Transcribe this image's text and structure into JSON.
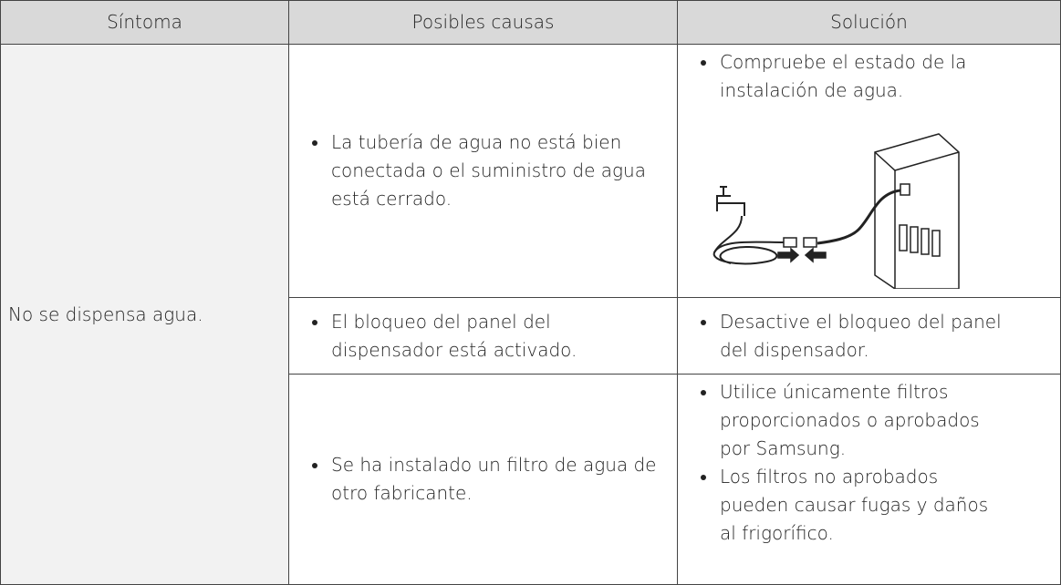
{
  "table": {
    "headers": [
      "Síntoma",
      "Posibles causas",
      "Solución"
    ],
    "symptom": "No se dispensa agua.",
    "rows": [
      {
        "cause": "La tubería de agua no está bien conectada o el suministro de agua está cerrado.",
        "solutions": [
          "Compruebe el estado de la instalación de agua."
        ]
      },
      {
        "cause": "El bloqueo del panel del dispensador está activado.",
        "solutions": [
          "Desactive el bloqueo del panel del dispensador."
        ]
      },
      {
        "cause": "Se ha instalado un filtro de agua de otro fabricante.",
        "solutions": [
          "Utilice únicamente filtros proporcionados o aprobados por Samsung.",
          "Los filtros no aprobados pueden causar fugas y daños al frigorífico."
        ]
      }
    ]
  }
}
